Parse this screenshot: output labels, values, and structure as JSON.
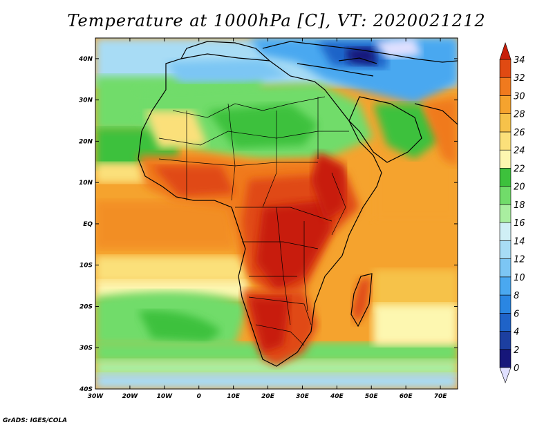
{
  "title": "Temperature at 1000hPa [C], VT: 2020021212",
  "credit": "GrADS: IGES/COLA",
  "map": {
    "lon_labels": [
      "30W",
      "20W",
      "10W",
      "0",
      "10E",
      "20E",
      "30E",
      "40E",
      "50E",
      "60E",
      "70E"
    ],
    "lat_labels": [
      "40N",
      "30N",
      "20N",
      "10N",
      "EQ",
      "10S",
      "20S",
      "30S",
      "40S"
    ],
    "lon_range": [
      -30,
      75
    ],
    "lat_range": [
      -40,
      45
    ]
  },
  "colorbar": {
    "labels": [
      "34",
      "32",
      "30",
      "28",
      "26",
      "24",
      "22",
      "20",
      "18",
      "16",
      "14",
      "12",
      "10",
      "8",
      "6",
      "4",
      "2",
      "0"
    ],
    "colors": [
      "#e0e0ff",
      "#16167a",
      "#1c3fa0",
      "#1f63c8",
      "#2a86e2",
      "#4aa8f0",
      "#7cc6f4",
      "#a8dcf5",
      "#d0eff5",
      "#a9eea0",
      "#71dc6a",
      "#3dc13c",
      "#fdf7b0",
      "#fbe07a",
      "#f6c24a",
      "#f5a32e",
      "#f07a1e",
      "#e04a12",
      "#c81e0a"
    ],
    "color_meaning": "bottom (below 0) to top (above 34), one color per interval"
  }
}
